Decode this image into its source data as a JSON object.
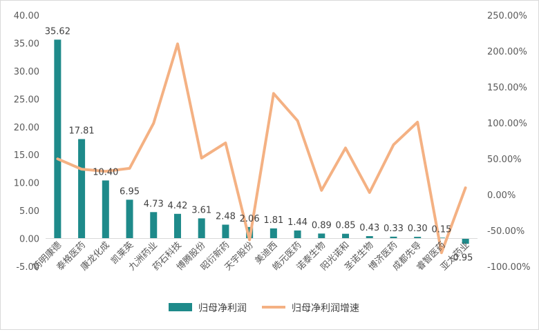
{
  "chart_data": {
    "type": "bar",
    "categories": [
      "药明康德",
      "泰格医药",
      "康龙化成",
      "凯莱英",
      "九洲药业",
      "药石科技",
      "博腾股份",
      "昭衍新药",
      "天宇股份",
      "美迪西",
      "皓元医药",
      "诺泰生物",
      "阳光诺和",
      "圣诺生物",
      "博济医药",
      "成都先导",
      "睿智医药",
      "亚太药业"
    ],
    "series": [
      {
        "name": "归母净利润",
        "type": "bar",
        "axis": "left",
        "values": [
          35.62,
          17.81,
          10.4,
          6.95,
          4.73,
          4.42,
          3.61,
          2.48,
          2.06,
          1.81,
          1.44,
          0.89,
          0.85,
          0.43,
          0.33,
          0.3,
          0.15,
          -0.95
        ],
        "data_labels": [
          "35.62",
          "17.81",
          "10.40",
          "6.95",
          "4.73",
          "4.42",
          "3.61",
          "2.48",
          "2.06",
          "1.81",
          "1.44",
          "0.89",
          "0.85",
          "0.43",
          "0.33",
          "0.30",
          "0.15",
          "-0.95"
        ],
        "color": "#1e8a8a"
      },
      {
        "name": "归母净利润增速",
        "type": "line",
        "axis": "right",
        "values": [
          49.8,
          35.5,
          32.5,
          36.6,
          99.5,
          210.0,
          51.0,
          72.0,
          -63.0,
          141.0,
          103.0,
          6.0,
          65.0,
          3.0,
          69.5,
          101.0,
          -81.0,
          9.5
        ],
        "color": "#f4b183"
      }
    ],
    "y_left": {
      "min": -5,
      "max": 40,
      "step": 5,
      "tick_labels": [
        "-5.00",
        "0.00",
        "5.00",
        "10.00",
        "15.00",
        "20.00",
        "25.00",
        "30.00",
        "35.00",
        "40.00"
      ]
    },
    "y_right": {
      "min": -100,
      "max": 250,
      "step": 50,
      "tick_labels": [
        "-100.00%",
        "-50.00%",
        "0.00%",
        "50.00%",
        "100.00%",
        "150.00%",
        "200.00%",
        "250.00%"
      ]
    },
    "grid": false,
    "legend_position": "bottom",
    "title": "",
    "xlabel": "",
    "ylabel": ""
  }
}
